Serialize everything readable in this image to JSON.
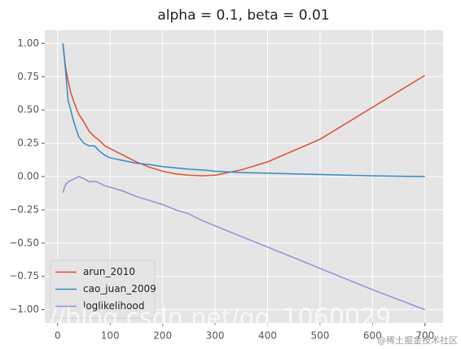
{
  "chart_data": {
    "type": "line",
    "title": "alpha = 0.1, beta = 0.01",
    "x": [
      10,
      15,
      20,
      25,
      30,
      40,
      50,
      60,
      70,
      80,
      90,
      100,
      125,
      150,
      175,
      200,
      225,
      250,
      275,
      300,
      350,
      400,
      500,
      600,
      700
    ],
    "series": [
      {
        "name": "arun_2010",
        "color": "#E24A33",
        "values": [
          1.0,
          0.82,
          0.72,
          0.63,
          0.57,
          0.47,
          0.41,
          0.34,
          0.3,
          0.27,
          0.23,
          0.21,
          0.16,
          0.11,
          0.07,
          0.04,
          0.02,
          0.01,
          0.005,
          0.01,
          0.05,
          0.11,
          0.28,
          0.52,
          0.76
        ]
      },
      {
        "name": "cao_juan_2009",
        "color": "#348ABD",
        "values": [
          1.0,
          0.8,
          0.57,
          0.5,
          0.42,
          0.3,
          0.25,
          0.23,
          0.23,
          0.19,
          0.16,
          0.14,
          0.12,
          0.1,
          0.09,
          0.075,
          0.065,
          0.055,
          0.05,
          0.04,
          0.03,
          0.025,
          0.015,
          0.005,
          0.0
        ]
      },
      {
        "name": "loglikelihood",
        "color": "#988ED5",
        "values": [
          -0.12,
          -0.06,
          -0.04,
          -0.03,
          -0.02,
          0.0,
          -0.015,
          -0.04,
          -0.035,
          -0.05,
          -0.07,
          -0.08,
          -0.11,
          -0.15,
          -0.18,
          -0.21,
          -0.25,
          -0.28,
          -0.33,
          -0.37,
          -0.45,
          -0.53,
          -0.69,
          -0.85,
          -1.0
        ]
      }
    ],
    "xlim": [
      -24.5,
      734.5
    ],
    "xticks": [
      0,
      100,
      200,
      300,
      400,
      500,
      600,
      700
    ],
    "ylim": [
      -1.1,
      1.1
    ],
    "yticks": [
      {
        "value": -1,
        "label": "−1.00"
      },
      {
        "value": -0.75,
        "label": "−0.75"
      },
      {
        "value": -0.5,
        "label": "−0.50"
      },
      {
        "value": -0.25,
        "label": "−0.25"
      },
      {
        "value": 0,
        "label": "0.00"
      },
      {
        "value": 0.25,
        "label": "0.25"
      },
      {
        "value": 0.5,
        "label": "0.50"
      },
      {
        "value": 0.75,
        "label": "0.75"
      },
      {
        "value": 1,
        "label": "1.00"
      }
    ],
    "grid": true,
    "legend": "lower left",
    "watermark": [
      "//blog.csdn.net/qq_1060029",
      "@稀土掘金技术社区"
    ]
  }
}
